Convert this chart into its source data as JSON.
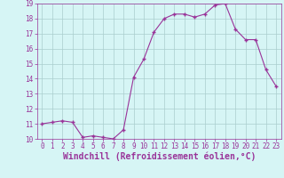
{
  "x": [
    0,
    1,
    2,
    3,
    4,
    5,
    6,
    7,
    8,
    9,
    10,
    11,
    12,
    13,
    14,
    15,
    16,
    17,
    18,
    19,
    20,
    21,
    22,
    23
  ],
  "y": [
    11.0,
    11.1,
    11.2,
    11.1,
    10.1,
    10.2,
    10.1,
    10.0,
    10.6,
    14.1,
    15.3,
    17.1,
    18.0,
    18.3,
    18.3,
    18.1,
    18.3,
    18.9,
    19.0,
    17.3,
    16.6,
    16.6,
    14.6,
    13.5
  ],
  "line_color": "#993399",
  "marker": "+",
  "marker_size": 3.5,
  "marker_lw": 1.0,
  "bg_color": "#d6f5f5",
  "grid_color": "#aacece",
  "xlabel": "Windchill (Refroidissement éolien,°C)",
  "xlabel_color": "#993399",
  "ylim": [
    10,
    19
  ],
  "yticks": [
    10,
    11,
    12,
    13,
    14,
    15,
    16,
    17,
    18,
    19
  ],
  "xticks": [
    0,
    1,
    2,
    3,
    4,
    5,
    6,
    7,
    8,
    9,
    10,
    11,
    12,
    13,
    14,
    15,
    16,
    17,
    18,
    19,
    20,
    21,
    22,
    23
  ],
  "tick_color": "#993399",
  "tick_fontsize": 5.5,
  "xlabel_fontsize": 7.0,
  "line_width": 0.8
}
